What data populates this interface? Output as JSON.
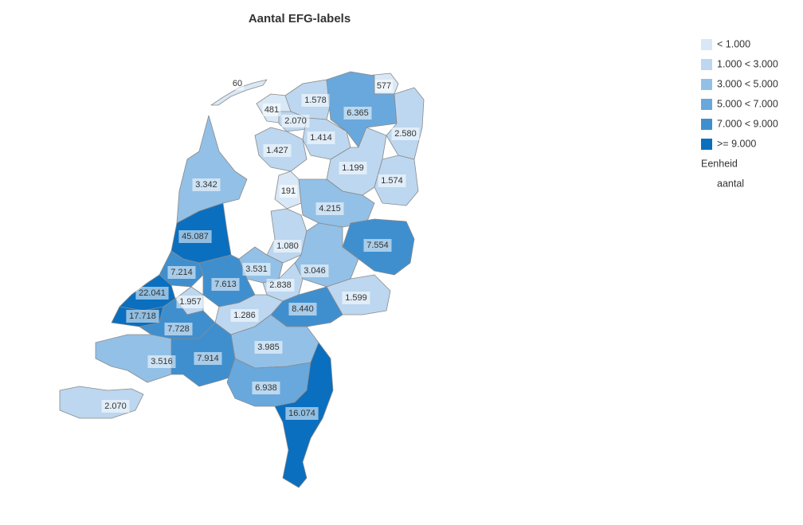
{
  "title": "Aantal EFG-labels",
  "legend": {
    "classes": [
      {
        "label": "< 1.000",
        "max": 1000,
        "color": "#d9e8f6"
      },
      {
        "label": "1.000 < 3.000",
        "min": 1000,
        "max": 3000,
        "color": "#bcd7ef"
      },
      {
        "label": "3.000 < 5.000",
        "min": 3000,
        "max": 5000,
        "color": "#93c0e6"
      },
      {
        "label": "5.000 < 7.000",
        "min": 5000,
        "max": 7000,
        "color": "#69a8dc"
      },
      {
        "label": "7.000 < 9.000",
        "min": 7000,
        "max": 9000,
        "color": "#3f8fcf"
      },
      {
        "label": ">= 9.000",
        "min": 9000,
        "color": "#0a6fbf"
      }
    ],
    "unit_title": "Eenheid",
    "unit": "aantal"
  },
  "regions": [
    {
      "value": 60,
      "label": "60"
    },
    {
      "value": 481,
      "label": "481"
    },
    {
      "value": 1578,
      "label": "1.578"
    },
    {
      "value": 577,
      "label": "577"
    },
    {
      "value": 6365,
      "label": "6.365"
    },
    {
      "value": 2070,
      "label": "2.070"
    },
    {
      "value": 1414,
      "label": "1.414"
    },
    {
      "value": 2580,
      "label": "2.580"
    },
    {
      "value": 1427,
      "label": "1.427"
    },
    {
      "value": 1199,
      "label": "1.199"
    },
    {
      "value": 1574,
      "label": "1.574"
    },
    {
      "value": 3342,
      "label": "3.342"
    },
    {
      "value": 191,
      "label": "191"
    },
    {
      "value": 4215,
      "label": "4.215"
    },
    {
      "value": 45087,
      "label": "45.087"
    },
    {
      "value": 1080,
      "label": "1.080"
    },
    {
      "value": 7554,
      "label": "7.554"
    },
    {
      "value": 3531,
      "label": "3.531"
    },
    {
      "value": 3046,
      "label": "3.046"
    },
    {
      "value": 7214,
      "label": "7.214"
    },
    {
      "value": 7613,
      "label": "7.613"
    },
    {
      "value": 2838,
      "label": "2.838"
    },
    {
      "value": 22041,
      "label": "22.041"
    },
    {
      "value": 1957,
      "label": "1.957"
    },
    {
      "value": 1599,
      "label": "1.599"
    },
    {
      "value": 17718,
      "label": "17.718"
    },
    {
      "value": 8440,
      "label": "8.440"
    },
    {
      "value": 7728,
      "label": "7.728"
    },
    {
      "value": 1286,
      "label": "1.286"
    },
    {
      "value": 3985,
      "label": "3.985"
    },
    {
      "value": 3516,
      "label": "3.516"
    },
    {
      "value": 7914,
      "label": "7.914"
    },
    {
      "value": 6938,
      "label": "6.938"
    },
    {
      "value": 16074,
      "label": "16.074"
    },
    {
      "value": 2070,
      "label": "2.070"
    }
  ]
}
